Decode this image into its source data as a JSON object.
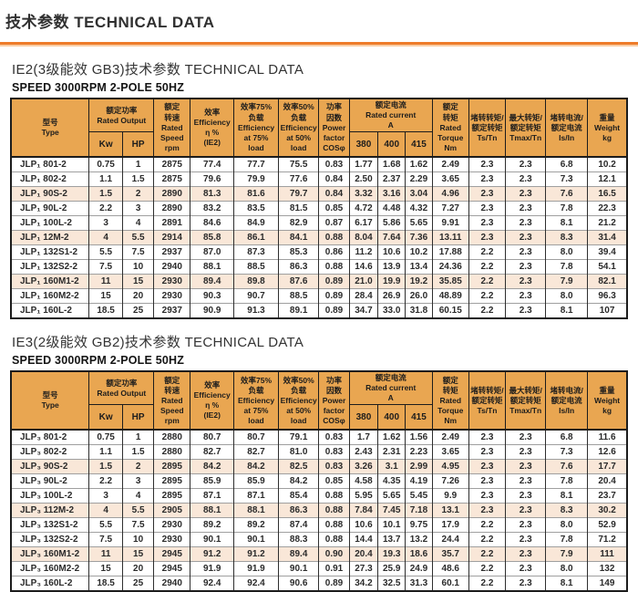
{
  "page": {
    "title": "技术参数  TECHNICAL DATA"
  },
  "colors": {
    "accent_orange_rule": "#ee7c2a",
    "header_orange": "#e9a651",
    "shaded_row_pink": "#f9e7d8"
  },
  "sections": [
    {
      "heading": "IE2(3级能效 GB3)技术参数  TECHNICAL DATA",
      "speed_line": "SPEED 3000RPM  2-POLE 50HZ",
      "table": {
        "header": [
          {
            "id": "type",
            "lines": [
              "型号",
              "Type"
            ]
          },
          {
            "id": "rated-output",
            "lines": [
              "额定功率",
              "Rated Output"
            ],
            "sub": [
              "Kw",
              "HP"
            ]
          },
          {
            "id": "rated-speed",
            "lines": [
              "额定",
              "转速",
              "Rated",
              "Speed",
              "rpm"
            ]
          },
          {
            "id": "efficiency",
            "lines": [
              "效率",
              "Efficiency",
              "η %",
              "(IE2)"
            ]
          },
          {
            "id": "eff-75",
            "lines": [
              "效率75%",
              "负载",
              "Efficiency",
              "at 75%",
              "load"
            ]
          },
          {
            "id": "eff-50",
            "lines": [
              "效率50%",
              "负载",
              "Efficiency",
              "at 50%",
              "load"
            ]
          },
          {
            "id": "power-factor",
            "lines": [
              "功率",
              "因数",
              "Power",
              "factor",
              "COSφ"
            ]
          },
          {
            "id": "rated-current",
            "lines": [
              "额定电流",
              "Rated current",
              "A"
            ],
            "sub": [
              "380",
              "400",
              "415"
            ]
          },
          {
            "id": "rated-torque",
            "lines": [
              "额定",
              "转矩",
              "Rated",
              "Torque",
              "Nm"
            ]
          },
          {
            "id": "ts-tn",
            "lines": [
              "堵转转矩/",
              "额定转矩",
              "Ts/Tn"
            ]
          },
          {
            "id": "tmax-tn",
            "lines": [
              "最大转矩/",
              "额定转矩",
              "Tmax/Tn"
            ]
          },
          {
            "id": "is-in",
            "lines": [
              "堵转电流/",
              "额定电流",
              "Is/In"
            ]
          },
          {
            "id": "weight",
            "lines": [
              "重量",
              "Weight",
              "kg"
            ]
          }
        ],
        "shaded_rows": [
          2,
          5,
          8
        ],
        "rows": [
          [
            "JLP₁ 801-2",
            "0.75",
            "1",
            "2875",
            "77.4",
            "77.7",
            "75.5",
            "0.83",
            "1.77",
            "1.68",
            "1.62",
            "2.49",
            "2.3",
            "2.3",
            "6.8",
            "10.2"
          ],
          [
            "JLP₁ 802-2",
            "1.1",
            "1.5",
            "2875",
            "79.6",
            "79.9",
            "77.6",
            "0.84",
            "2.50",
            "2.37",
            "2.29",
            "3.65",
            "2.3",
            "2.3",
            "7.3",
            "12.1"
          ],
          [
            "JLP₁ 90S-2",
            "1.5",
            "2",
            "2890",
            "81.3",
            "81.6",
            "79.7",
            "0.84",
            "3.32",
            "3.16",
            "3.04",
            "4.96",
            "2.3",
            "2.3",
            "7.6",
            "16.5"
          ],
          [
            "JLP₁ 90L-2",
            "2.2",
            "3",
            "2890",
            "83.2",
            "83.5",
            "81.5",
            "0.85",
            "4.72",
            "4.48",
            "4.32",
            "7.27",
            "2.3",
            "2.3",
            "7.8",
            "22.3"
          ],
          [
            "JLP₁ 100L-2",
            "3",
            "4",
            "2891",
            "84.6",
            "84.9",
            "82.9",
            "0.87",
            "6.17",
            "5.86",
            "5.65",
            "9.91",
            "2.3",
            "2.3",
            "8.1",
            "21.2"
          ],
          [
            "JLP₁ 12M-2",
            "4",
            "5.5",
            "2914",
            "85.8",
            "86.1",
            "84.1",
            "0.88",
            "8.04",
            "7.64",
            "7.36",
            "13.11",
            "2.3",
            "2.3",
            "8.3",
            "31.4"
          ],
          [
            "JLP₁ 132S1-2",
            "5.5",
            "7.5",
            "2937",
            "87.0",
            "87.3",
            "85.3",
            "0.86",
            "11.2",
            "10.6",
            "10.2",
            "17.88",
            "2.2",
            "2.3",
            "8.0",
            "39.4"
          ],
          [
            "JLP₁ 132S2-2",
            "7.5",
            "10",
            "2940",
            "88.1",
            "88.5",
            "86.3",
            "0.88",
            "14.6",
            "13.9",
            "13.4",
            "24.36",
            "2.2",
            "2.3",
            "7.8",
            "54.1"
          ],
          [
            "JLP₁ 160M1-2",
            "11",
            "15",
            "2930",
            "89.4",
            "89.8",
            "87.6",
            "0.89",
            "21.0",
            "19.9",
            "19.2",
            "35.85",
            "2.2",
            "2.3",
            "7.9",
            "82.1"
          ],
          [
            "JLP₁ 160M2-2",
            "15",
            "20",
            "2930",
            "90.3",
            "90.7",
            "88.5",
            "0.89",
            "28.4",
            "26.9",
            "26.0",
            "48.89",
            "2.2",
            "2.3",
            "8.0",
            "96.3"
          ],
          [
            "JLP₁ 160L-2",
            "18.5",
            "25",
            "2937",
            "90.9",
            "91.3",
            "89.1",
            "0.89",
            "34.7",
            "33.0",
            "31.8",
            "60.15",
            "2.2",
            "2.3",
            "8.1",
            "107"
          ]
        ]
      }
    },
    {
      "heading": "IE3(2级能效 GB2)技术参数  TECHNICAL DATA",
      "speed_line": "SPEED 3000RPM  2-POLE 50HZ",
      "table": {
        "header": [
          {
            "id": "type",
            "lines": [
              "型号",
              "Type"
            ]
          },
          {
            "id": "rated-output",
            "lines": [
              "额定功率",
              "Rated Output"
            ],
            "sub": [
              "Kw",
              "HP"
            ]
          },
          {
            "id": "rated-speed",
            "lines": [
              "额定",
              "转速",
              "Rated",
              "Speed",
              "rpm"
            ]
          },
          {
            "id": "efficiency",
            "lines": [
              "效率",
              "Efficiency",
              "η %",
              "(IE2)"
            ]
          },
          {
            "id": "eff-75",
            "lines": [
              "效率75%",
              "负载",
              "Efficiency",
              "at 75%",
              "load"
            ]
          },
          {
            "id": "eff-50",
            "lines": [
              "效率50%",
              "负载",
              "Efficiency",
              "at 50%",
              "load"
            ]
          },
          {
            "id": "power-factor",
            "lines": [
              "功率",
              "因数",
              "Power",
              "factor",
              "COSφ"
            ]
          },
          {
            "id": "rated-current",
            "lines": [
              "额定电流",
              "Rated current",
              "A"
            ],
            "sub": [
              "380",
              "400",
              "415"
            ]
          },
          {
            "id": "rated-torque",
            "lines": [
              "额定",
              "转矩",
              "Rated",
              "Torque",
              "Nm"
            ]
          },
          {
            "id": "ts-tn",
            "lines": [
              "堵转转矩/",
              "额定转矩",
              "Ts/Tn"
            ]
          },
          {
            "id": "tmax-tn",
            "lines": [
              "最大转矩/",
              "额定转矩",
              "Tmax/Tn"
            ]
          },
          {
            "id": "is-in",
            "lines": [
              "堵转电流/",
              "额定电流",
              "Is/In"
            ]
          },
          {
            "id": "weight",
            "lines": [
              "重量",
              "Weight",
              "kg"
            ]
          }
        ],
        "shaded_rows": [
          2,
          5,
          8
        ],
        "rows": [
          [
            "JLP₃ 801-2",
            "0.75",
            "1",
            "2880",
            "80.7",
            "80.7",
            "79.1",
            "0.83",
            "1.7",
            "1.62",
            "1.56",
            "2.49",
            "2.3",
            "2.3",
            "6.8",
            "11.6"
          ],
          [
            "JLP₃ 802-2",
            "1.1",
            "1.5",
            "2880",
            "82.7",
            "82.7",
            "81.0",
            "0.83",
            "2.43",
            "2.31",
            "2.23",
            "3.65",
            "2.3",
            "2.3",
            "7.3",
            "12.6"
          ],
          [
            "JLP₃ 90S-2",
            "1.5",
            "2",
            "2895",
            "84.2",
            "84.2",
            "82.5",
            "0.83",
            "3.26",
            "3.1",
            "2.99",
            "4.95",
            "2.3",
            "2.3",
            "7.6",
            "17.7"
          ],
          [
            "JLP₃ 90L-2",
            "2.2",
            "3",
            "2895",
            "85.9",
            "85.9",
            "84.2",
            "0.85",
            "4.58",
            "4.35",
            "4.19",
            "7.26",
            "2.3",
            "2.3",
            "7.8",
            "20.4"
          ],
          [
            "JLP₃ 100L-2",
            "3",
            "4",
            "2895",
            "87.1",
            "87.1",
            "85.4",
            "0.88",
            "5.95",
            "5.65",
            "5.45",
            "9.9",
            "2.3",
            "2.3",
            "8.1",
            "23.7"
          ],
          [
            "JLP₃ 112M-2",
            "4",
            "5.5",
            "2905",
            "88.1",
            "88.1",
            "86.3",
            "0.88",
            "7.84",
            "7.45",
            "7.18",
            "13.1",
            "2.3",
            "2.3",
            "8.3",
            "30.2"
          ],
          [
            "JLP₃ 132S1-2",
            "5.5",
            "7.5",
            "2930",
            "89.2",
            "89.2",
            "87.4",
            "0.88",
            "10.6",
            "10.1",
            "9.75",
            "17.9",
            "2.2",
            "2.3",
            "8.0",
            "52.9"
          ],
          [
            "JLP₃ 132S2-2",
            "7.5",
            "10",
            "2930",
            "90.1",
            "90.1",
            "88.3",
            "0.88",
            "14.4",
            "13.7",
            "13.2",
            "24.4",
            "2.2",
            "2.3",
            "7.8",
            "71.2"
          ],
          [
            "JLP₃ 160M1-2",
            "11",
            "15",
            "2945",
            "91.2",
            "91.2",
            "89.4",
            "0.90",
            "20.4",
            "19.3",
            "18.6",
            "35.7",
            "2.2",
            "2.3",
            "7.9",
            "111"
          ],
          [
            "JLP₃ 160M2-2",
            "15",
            "20",
            "2945",
            "91.9",
            "91.9",
            "90.1",
            "0.91",
            "27.3",
            "25.9",
            "24.9",
            "48.6",
            "2.2",
            "2.3",
            "8.0",
            "132"
          ],
          [
            "JLP₃ 160L-2",
            "18.5",
            "25",
            "2940",
            "92.4",
            "92.4",
            "90.6",
            "0.89",
            "34.2",
            "32.5",
            "31.3",
            "60.1",
            "2.2",
            "2.3",
            "8.1",
            "149"
          ]
        ]
      }
    }
  ]
}
